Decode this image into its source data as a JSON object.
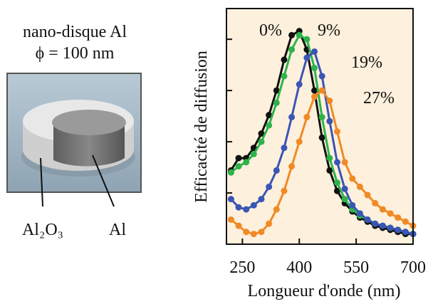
{
  "illustration": {
    "title_lines": [
      "nano-disque Al",
      "ϕ = 100 nm"
    ],
    "labels": [
      "Al₂O₃",
      "Al"
    ]
  },
  "chart_data": {
    "type": "line",
    "xlabel": "Longueur d'onde (nm)",
    "ylabel": "Efficacité de diffusion",
    "x": [
      220,
      240,
      260,
      280,
      300,
      320,
      340,
      360,
      380,
      400,
      420,
      440,
      460,
      480,
      500,
      520,
      540,
      560,
      580,
      600,
      620,
      640,
      660,
      680,
      700
    ],
    "xlim": [
      208,
      700
    ],
    "xticks": [
      250,
      400,
      550,
      700
    ],
    "ylim": [
      0,
      1.15
    ],
    "yticks": [
      0.25,
      0.5,
      0.75,
      1.0
    ],
    "ytick_labels": false,
    "background": "#fdf0dc",
    "markers": true,
    "series": [
      {
        "name": "0%",
        "color": "#111111",
        "values": [
          0.36,
          0.42,
          0.42,
          0.47,
          0.54,
          0.63,
          0.75,
          0.9,
          1.02,
          1.04,
          0.95,
          0.75,
          0.52,
          0.36,
          0.26,
          0.2,
          0.16,
          0.13,
          0.11,
          0.09,
          0.08,
          0.07,
          0.06,
          0.05,
          0.05
        ]
      },
      {
        "name": "9%",
        "color": "#2db34a",
        "values": [
          0.35,
          0.38,
          0.4,
          0.44,
          0.5,
          0.58,
          0.69,
          0.82,
          0.95,
          1.02,
          1.0,
          0.86,
          0.62,
          0.42,
          0.3,
          0.22,
          0.17,
          0.14,
          0.12,
          0.1,
          0.09,
          0.08,
          0.07,
          0.06,
          0.05
        ]
      },
      {
        "name": "19%",
        "color": "#3a55b4",
        "values": [
          0.22,
          0.18,
          0.17,
          0.19,
          0.22,
          0.28,
          0.36,
          0.47,
          0.62,
          0.78,
          0.91,
          0.94,
          0.82,
          0.6,
          0.4,
          0.27,
          0.19,
          0.15,
          0.12,
          0.1,
          0.09,
          0.08,
          0.07,
          0.06,
          0.05
        ]
      },
      {
        "name": "27%",
        "color": "#f08a24",
        "values": [
          0.12,
          0.09,
          0.06,
          0.05,
          0.06,
          0.1,
          0.17,
          0.26,
          0.38,
          0.5,
          0.62,
          0.72,
          0.75,
          0.7,
          0.55,
          0.4,
          0.32,
          0.28,
          0.24,
          0.2,
          0.17,
          0.15,
          0.13,
          0.11,
          0.09
        ]
      }
    ]
  }
}
